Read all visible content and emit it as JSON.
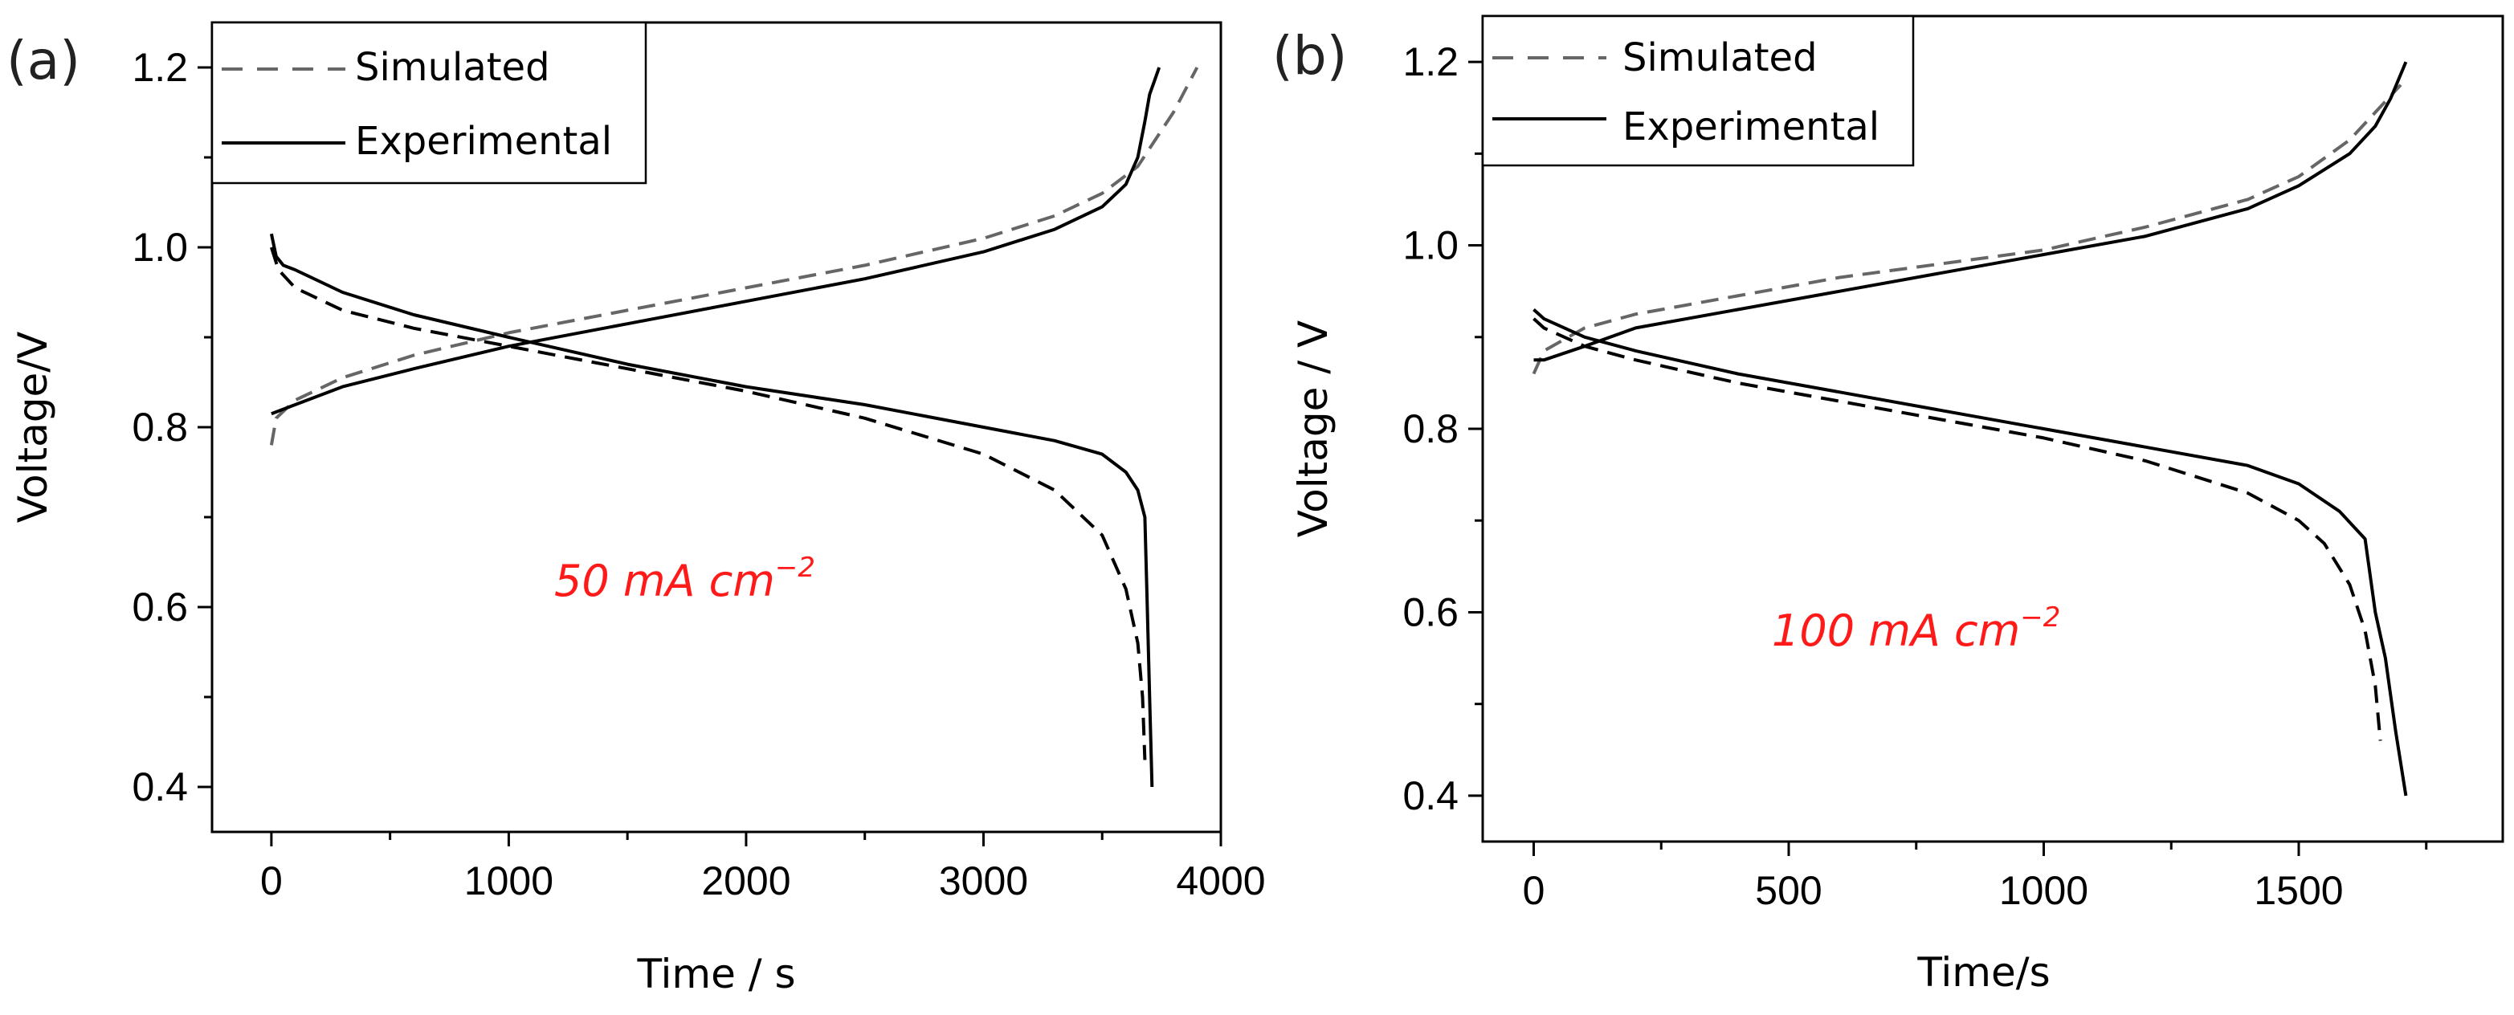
{
  "chart_data": [
    {
      "panel": "(a)",
      "type": "line",
      "xlabel": "Time / s",
      "ylabel": "Voltage/V",
      "xlim": [
        -250,
        4000
      ],
      "ylim": [
        0.35,
        1.25
      ],
      "xticks": [
        0,
        1000,
        2000,
        3000,
        4000
      ],
      "yticks": [
        0.4,
        0.6,
        0.8,
        1.0,
        1.2
      ],
      "xtick_labels": [
        "0",
        "1000",
        "2000",
        "3000",
        "4000"
      ],
      "ytick_labels": [
        "0.4",
        "0.6",
        "0.8",
        "1.0",
        "1.2"
      ],
      "legend": {
        "position": "top-left",
        "simulated": "Simulated",
        "experimental": "Experimental"
      },
      "annotation": {
        "text": "50 mA cm",
        "superscript": "−2"
      },
      "series": [
        {
          "name": "Simulated (charge)",
          "style": "dashed",
          "color": "#666666",
          "x": [
            0,
            20,
            100,
            300,
            600,
            1000,
            1500,
            2000,
            2500,
            3000,
            3300,
            3500,
            3650,
            3750,
            3800,
            3850,
            3900
          ],
          "y": [
            0.78,
            0.81,
            0.83,
            0.855,
            0.88,
            0.905,
            0.93,
            0.955,
            0.98,
            1.01,
            1.035,
            1.06,
            1.09,
            1.13,
            1.15,
            1.175,
            1.2
          ]
        },
        {
          "name": "Experimental (charge)",
          "style": "solid",
          "color": "#000000",
          "x": [
            0,
            20,
            100,
            300,
            600,
            1000,
            1500,
            2000,
            2500,
            3000,
            3300,
            3500,
            3600,
            3650,
            3680,
            3700,
            3720,
            3740
          ],
          "y": [
            0.815,
            0.817,
            0.825,
            0.845,
            0.865,
            0.89,
            0.915,
            0.94,
            0.965,
            0.995,
            1.02,
            1.045,
            1.07,
            1.1,
            1.14,
            1.17,
            1.185,
            1.2
          ]
        },
        {
          "name": "Simulated (discharge)",
          "style": "dashed",
          "color": "#000000",
          "x": [
            0,
            30,
            100,
            300,
            600,
            1000,
            1500,
            2000,
            2500,
            3000,
            3300,
            3500,
            3600,
            3650,
            3670,
            3680
          ],
          "y": [
            1.0,
            0.975,
            0.955,
            0.93,
            0.91,
            0.89,
            0.865,
            0.84,
            0.81,
            0.77,
            0.73,
            0.68,
            0.62,
            0.56,
            0.5,
            0.43
          ]
        },
        {
          "name": "Experimental (discharge)",
          "style": "solid",
          "color": "#000000",
          "x": [
            0,
            20,
            50,
            100,
            300,
            600,
            1000,
            1500,
            2000,
            2500,
            3000,
            3300,
            3500,
            3600,
            3650,
            3680,
            3690,
            3700,
            3710
          ],
          "y": [
            1.015,
            0.99,
            0.98,
            0.975,
            0.95,
            0.925,
            0.9,
            0.87,
            0.845,
            0.825,
            0.8,
            0.785,
            0.77,
            0.75,
            0.73,
            0.7,
            0.6,
            0.5,
            0.4
          ]
        }
      ]
    },
    {
      "panel": "(b)",
      "type": "line",
      "xlabel": "Time/s",
      "ylabel": "Voltage / V",
      "xlim": [
        -100,
        1900
      ],
      "ylim": [
        0.35,
        1.25
      ],
      "xticks": [
        0,
        500,
        1000,
        1500
      ],
      "yticks": [
        0.4,
        0.6,
        0.8,
        1.0,
        1.2
      ],
      "xtick_labels": [
        "0",
        "500",
        "1000",
        "1500"
      ],
      "ytick_labels": [
        "0.4",
        "0.6",
        "0.8",
        "1.0",
        "1.2"
      ],
      "legend": {
        "position": "top-left",
        "simulated": "Simulated",
        "experimental": "Experimental"
      },
      "annotation": {
        "text": "100 mA cm",
        "superscript": "−2"
      },
      "series": [
        {
          "name": "Simulated (charge)",
          "style": "dashed",
          "color": "#666666",
          "x": [
            0,
            20,
            100,
            200,
            400,
            600,
            800,
            1000,
            1200,
            1400,
            1500,
            1600,
            1650,
            1700
          ],
          "y": [
            0.86,
            0.885,
            0.91,
            0.925,
            0.945,
            0.965,
            0.98,
            0.995,
            1.02,
            1.05,
            1.075,
            1.115,
            1.145,
            1.175
          ]
        },
        {
          "name": "Experimental (charge)",
          "style": "solid",
          "color": "#000000",
          "x": [
            0,
            20,
            100,
            200,
            400,
            600,
            800,
            1000,
            1200,
            1400,
            1500,
            1600,
            1650,
            1680,
            1710
          ],
          "y": [
            0.875,
            0.875,
            0.89,
            0.91,
            0.93,
            0.95,
            0.97,
            0.99,
            1.01,
            1.04,
            1.065,
            1.1,
            1.13,
            1.16,
            1.2
          ]
        },
        {
          "name": "Simulated (discharge)",
          "style": "dashed",
          "color": "#000000",
          "x": [
            0,
            20,
            100,
            200,
            400,
            600,
            800,
            1000,
            1200,
            1400,
            1500,
            1550,
            1600,
            1630,
            1650,
            1660
          ],
          "y": [
            0.92,
            0.91,
            0.89,
            0.875,
            0.85,
            0.83,
            0.81,
            0.79,
            0.765,
            0.73,
            0.7,
            0.675,
            0.63,
            0.58,
            0.52,
            0.46
          ]
        },
        {
          "name": "Experimental (discharge)",
          "style": "solid",
          "color": "#000000",
          "x": [
            0,
            20,
            100,
            200,
            400,
            600,
            800,
            1000,
            1200,
            1400,
            1500,
            1580,
            1630,
            1650,
            1670,
            1690,
            1710
          ],
          "y": [
            0.93,
            0.92,
            0.9,
            0.885,
            0.86,
            0.84,
            0.82,
            0.8,
            0.78,
            0.76,
            0.74,
            0.71,
            0.68,
            0.6,
            0.55,
            0.47,
            0.4
          ]
        }
      ]
    }
  ]
}
